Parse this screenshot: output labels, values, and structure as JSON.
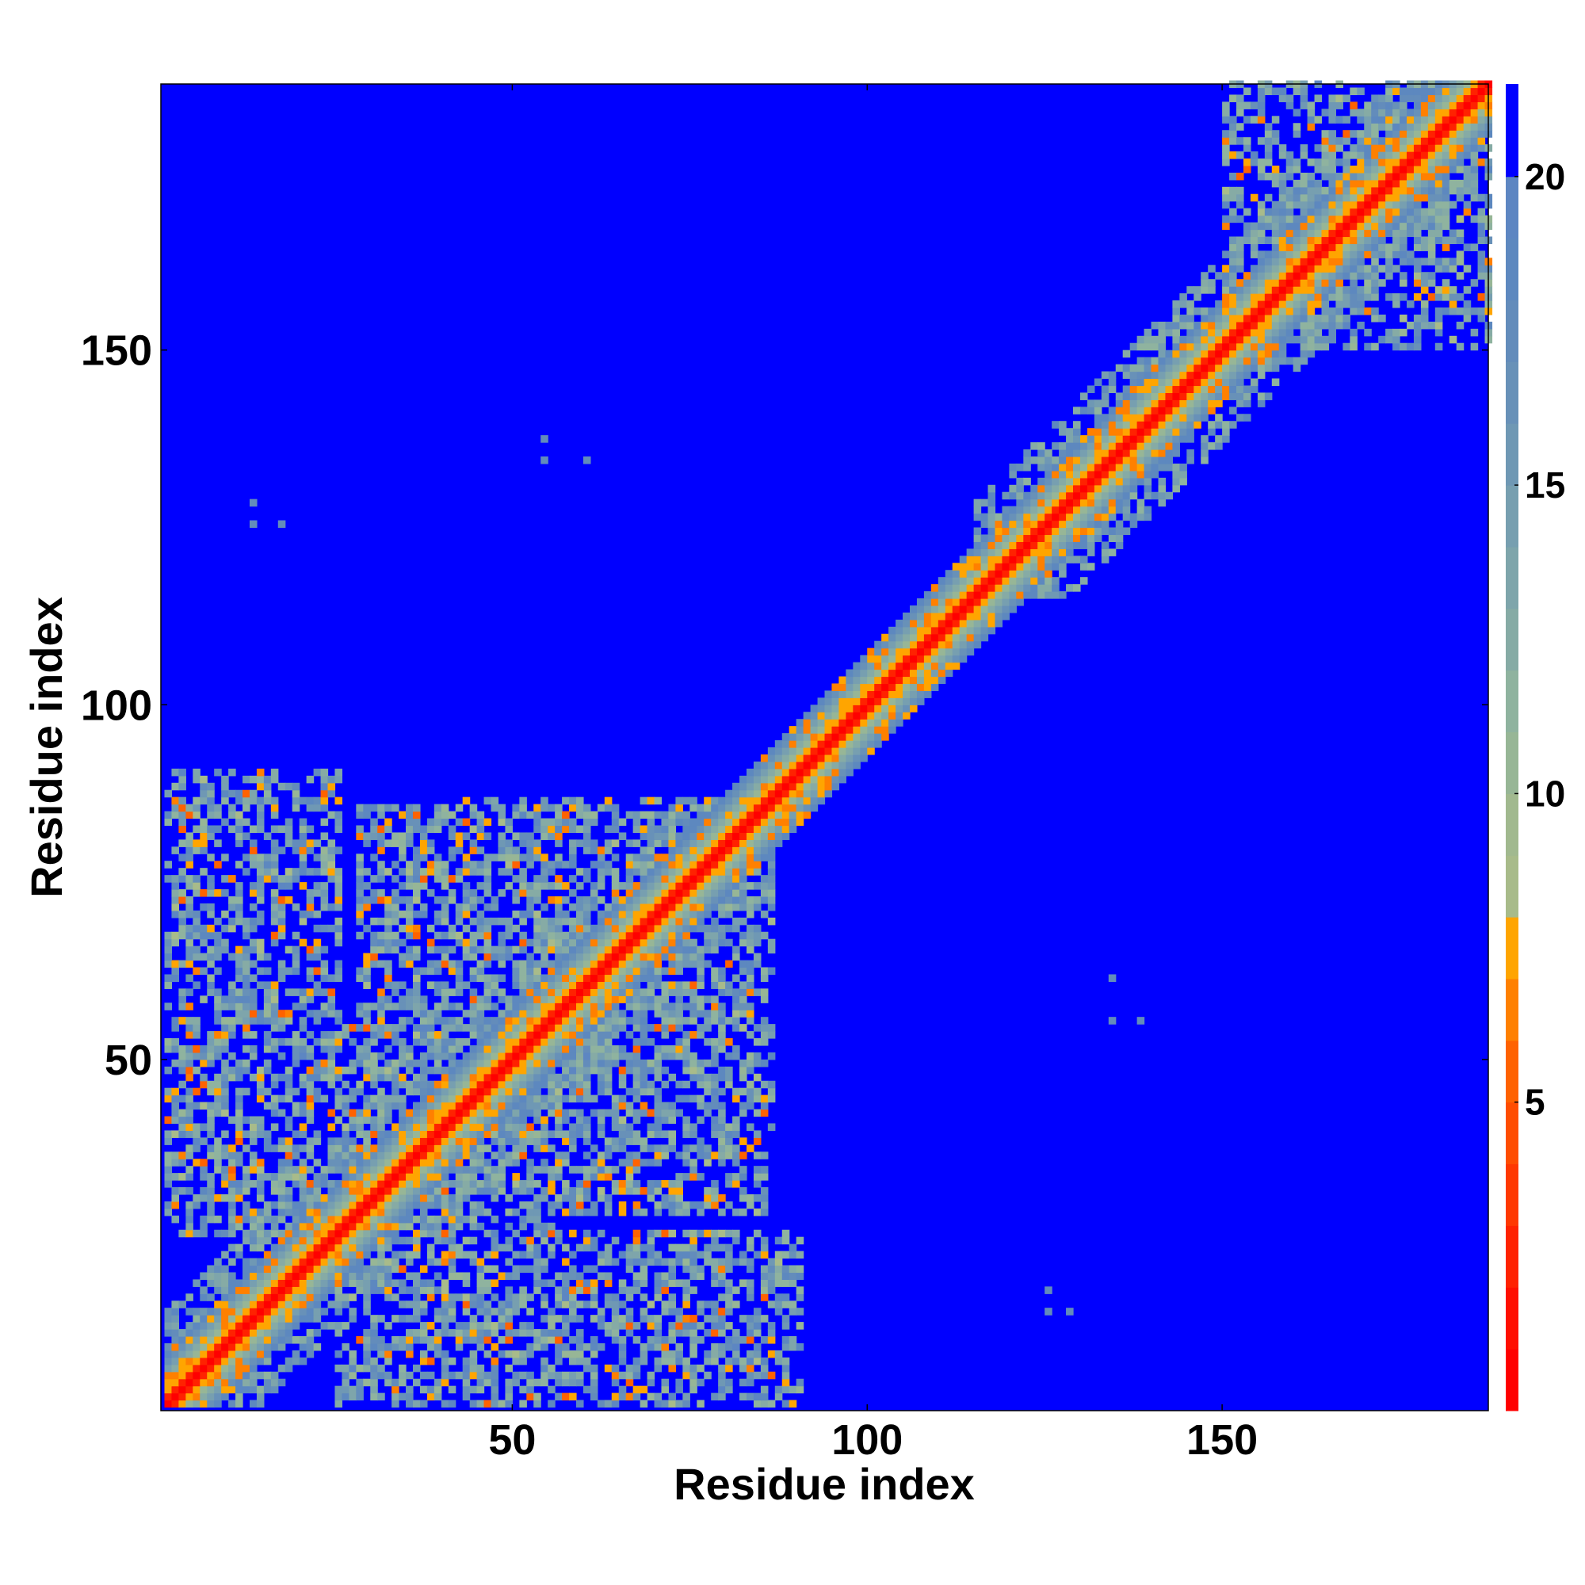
{
  "chart_data": {
    "type": "heatmap",
    "title": "",
    "xlabel": "Residue index",
    "ylabel": "Residue index",
    "xlim": [
      1,
      187
    ],
    "ylim": [
      1,
      187
    ],
    "x_ticks": [
      50,
      100,
      150
    ],
    "y_ticks": [
      50,
      100,
      150
    ],
    "colorbar": {
      "ticks": [
        5,
        10,
        15,
        20
      ],
      "range": [
        0,
        21.5
      ],
      "palette": [
        {
          "max": 1,
          "color": "#ff0000"
        },
        {
          "max": 2,
          "color": "#ff0f00"
        },
        {
          "max": 3,
          "color": "#ff2200"
        },
        {
          "max": 4,
          "color": "#ff3800"
        },
        {
          "max": 5,
          "color": "#ff4d00"
        },
        {
          "max": 6,
          "color": "#ff6200"
        },
        {
          "max": 7,
          "color": "#ff8000"
        },
        {
          "max": 8,
          "color": "#ffa500"
        },
        {
          "max": 9,
          "color": "#a8bb8a"
        },
        {
          "max": 10,
          "color": "#a1b98f"
        },
        {
          "max": 11,
          "color": "#97b696"
        },
        {
          "max": 12,
          "color": "#8fb39f"
        },
        {
          "max": 13,
          "color": "#86aba5"
        },
        {
          "max": 14,
          "color": "#7ea5ab"
        },
        {
          "max": 15,
          "color": "#779fb0"
        },
        {
          "max": 16,
          "color": "#6f98b4"
        },
        {
          "max": 17,
          "color": "#6891b8"
        },
        {
          "max": 18,
          "color": "#638cbb"
        },
        {
          "max": 19,
          "color": "#5d88bf"
        },
        {
          "max": 20,
          "color": "#5d86c2"
        },
        {
          "max": 21.5,
          "color": "#0000ff"
        }
      ]
    },
    "colors": {
      "background": "#0000ff",
      "contact_close": "#ff0000",
      "contact_mid": "#ffa500",
      "contact_far": "#6891b8"
    },
    "data_description": "Residue-residue distance map of 187 residues; values in Angstrom with values above 20 shown as saturated blue.",
    "diagonal_band": {
      "core_width": 1.5,
      "falloff": 2.2
    },
    "domains": [
      {
        "range": [
          1,
          86
        ],
        "strength": 0.55
      },
      {
        "range": [
          115,
          187
        ],
        "strength": 0.6
      },
      {
        "range": [
          150,
          187
        ],
        "strength": 0.7
      }
    ],
    "off_diagonal_clusters": [
      {
        "x": [
          1,
          25
        ],
        "y": [
          33,
          90
        ],
        "strength": 0.55
      },
      {
        "x": [
          28,
          60
        ],
        "y": [
          35,
          85
        ],
        "strength": 0.6
      },
      {
        "x": [
          62,
          86
        ],
        "y": [
          40,
          85
        ],
        "strength": 0.5
      },
      {
        "x": [
          25,
          55
        ],
        "y": [
          1,
          30
        ],
        "strength": 0.55
      },
      {
        "x": [
          60,
          88
        ],
        "y": [
          1,
          25
        ],
        "strength": 0.55
      },
      {
        "x": [
          150,
          187
        ],
        "y": [
          150,
          187
        ],
        "strength": 0.5
      }
    ],
    "isolated_contacts": [
      [
        54,
        137
      ],
      [
        54,
        134
      ],
      [
        60,
        134
      ],
      [
        13,
        128
      ],
      [
        13,
        125
      ],
      [
        17,
        125
      ],
      [
        134,
        61
      ],
      [
        134,
        55
      ],
      [
        138,
        55
      ],
      [
        125,
        17
      ],
      [
        125,
        14
      ],
      [
        128,
        14
      ]
    ]
  }
}
